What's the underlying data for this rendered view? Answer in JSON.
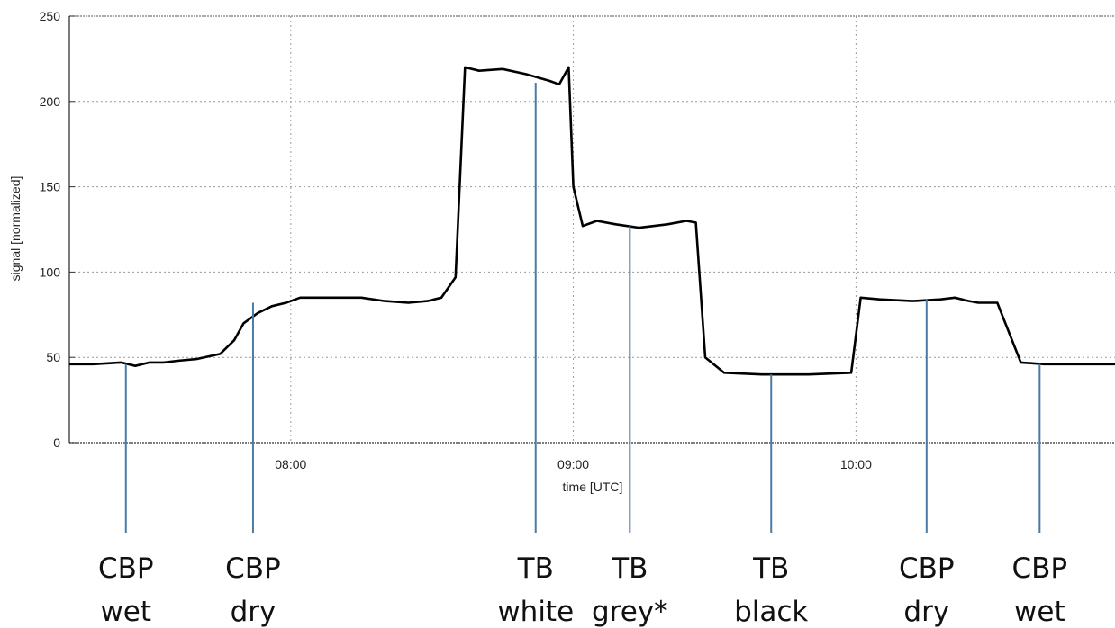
{
  "chart_data": {
    "type": "line",
    "title": "",
    "xlabel": "time [UTC]",
    "ylabel": "signal [normalized]",
    "x_unit": "time UTC (HH:MM)",
    "xlim": [
      "07:13",
      "10:55"
    ],
    "ylim": [
      0,
      250
    ],
    "y_ticks": [
      0,
      50,
      100,
      150,
      200,
      250
    ],
    "x_ticks": [
      "08:00",
      "09:00",
      "10:00"
    ],
    "grid": true,
    "grid_style": "dotted",
    "line_color": "#000000",
    "marker_color": "#4a7ba7",
    "series": [
      {
        "x": [
          "07:13",
          "07:18",
          "07:24",
          "07:27",
          "07:30",
          "07:33",
          "07:36",
          "07:40",
          "07:45",
          "07:48",
          "07:50",
          "07:53",
          "07:56",
          "07:59",
          "08:02",
          "08:06",
          "08:10",
          "08:15",
          "08:20",
          "08:25",
          "08:29",
          "08:32",
          "08:35",
          "08:37",
          "08:40",
          "08:45",
          "08:50",
          "08:55",
          "08:57",
          "08:59",
          "09:00",
          "09:02",
          "09:05",
          "09:09",
          "09:14",
          "09:20",
          "09:24",
          "09:26",
          "09:28",
          "09:32",
          "09:40",
          "09:50",
          "09:59",
          "10:01",
          "10:05",
          "10:12",
          "10:18",
          "10:21",
          "10:24",
          "10:26",
          "10:30",
          "10:35",
          "10:40",
          "10:45",
          "10:55"
        ],
        "y": [
          46,
          46,
          47,
          45,
          47,
          47,
          48,
          49,
          52,
          60,
          70,
          76,
          80,
          82,
          85,
          85,
          85,
          85,
          83,
          82,
          83,
          85,
          97,
          220,
          218,
          219,
          216,
          212,
          210,
          220,
          150,
          127,
          130,
          128,
          126,
          128,
          130,
          129,
          50,
          41,
          40,
          40,
          41,
          85,
          84,
          83,
          84,
          85,
          83,
          82,
          82,
          47,
          46,
          46,
          46
        ]
      }
    ],
    "markers": [
      {
        "x": "07:25",
        "y": 46,
        "label_line1": "CBP",
        "label_line2": "wet"
      },
      {
        "x": "07:52",
        "y": 82,
        "label_line1": "CBP",
        "label_line2": "dry"
      },
      {
        "x": "08:52",
        "y": 211,
        "label_line1": "TB",
        "label_line2": "white"
      },
      {
        "x": "09:12",
        "y": 127,
        "label_line1": "TB",
        "label_line2": "grey*"
      },
      {
        "x": "09:42",
        "y": 40,
        "label_line1": "TB",
        "label_line2": "black"
      },
      {
        "x": "10:15",
        "y": 84,
        "label_line1": "CBP",
        "label_line2": "dry"
      },
      {
        "x": "10:39",
        "y": 46,
        "label_line1": "CBP",
        "label_line2": "wet"
      }
    ]
  }
}
